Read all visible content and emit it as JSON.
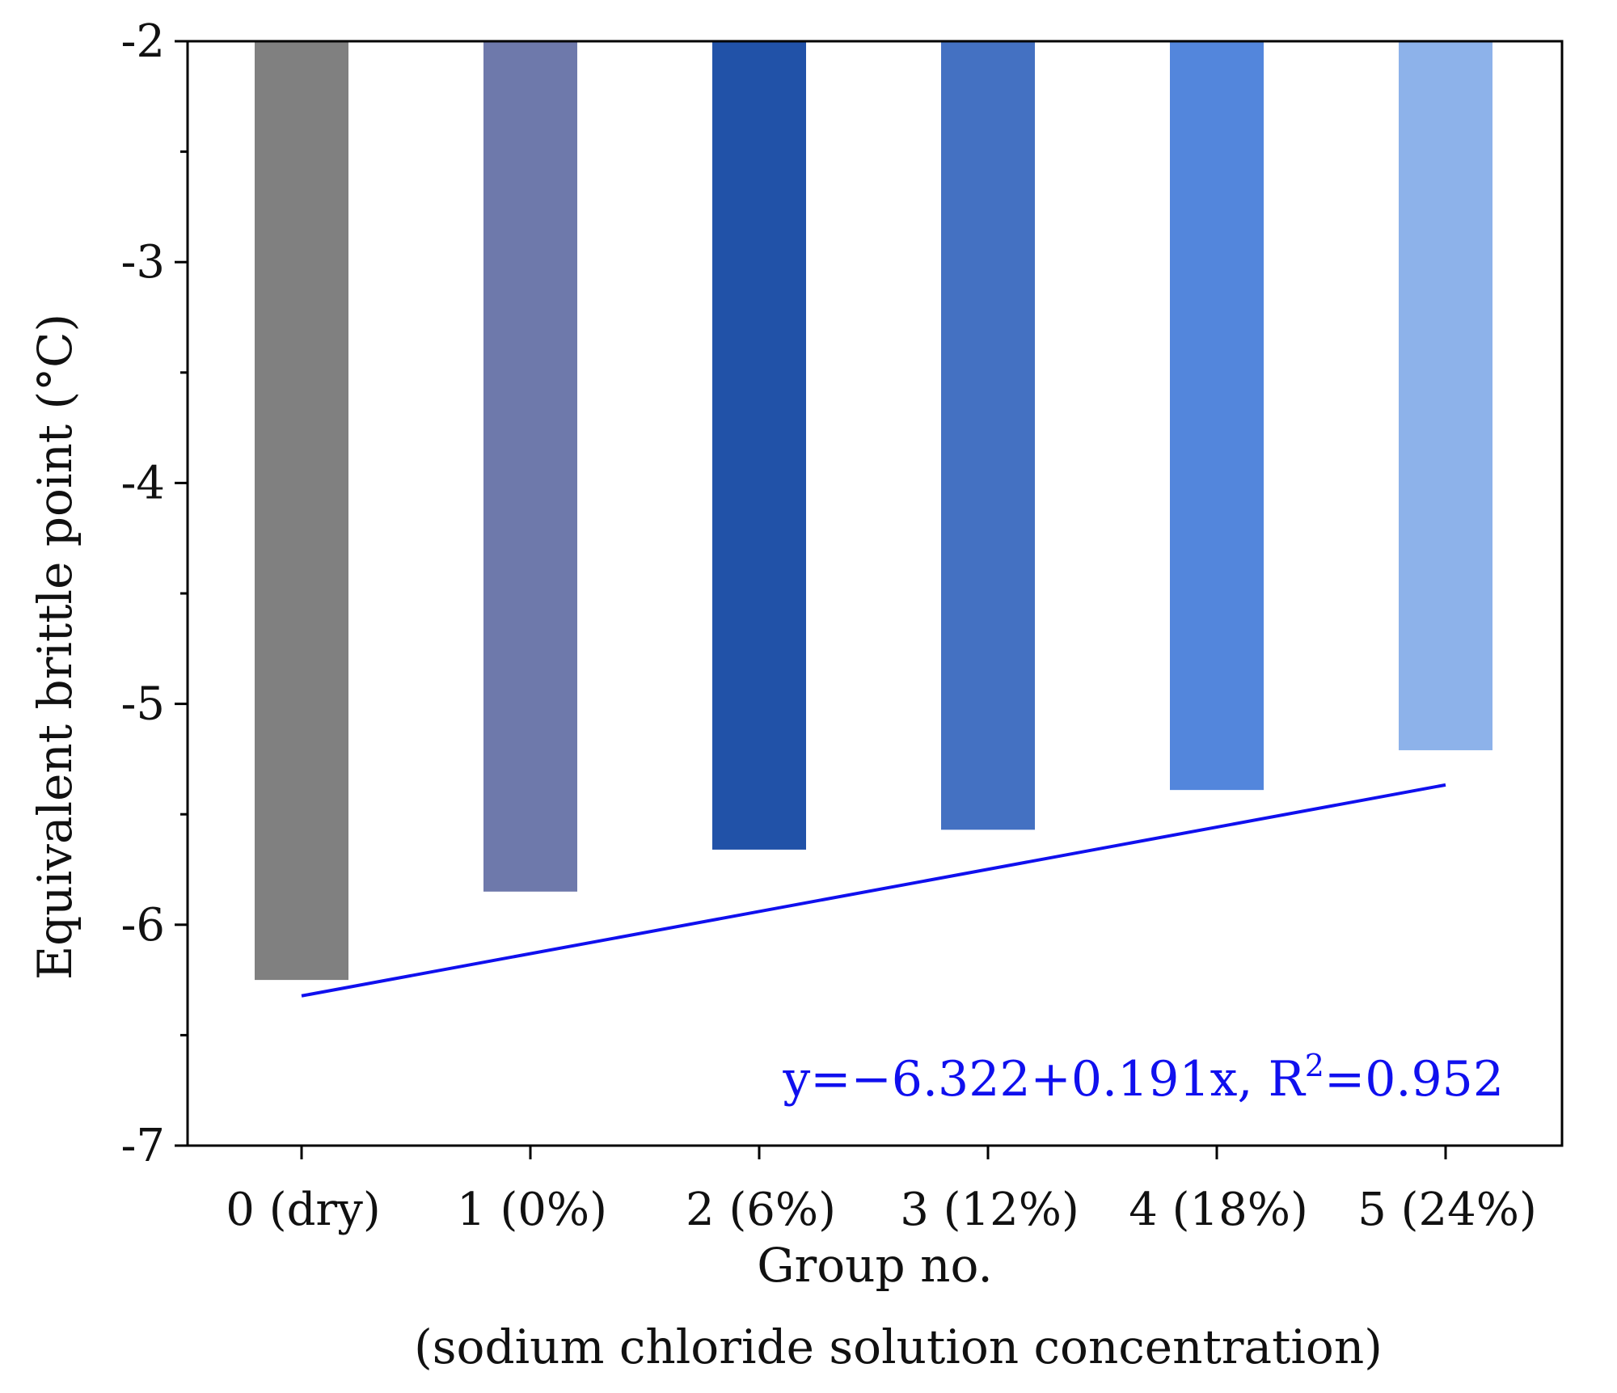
{
  "chart_data": {
    "type": "bar",
    "title": "",
    "xlabel": "Group no.",
    "xlabel_sub": "(sodium chloride solution concentration)",
    "ylabel": "Equivalent brittle point (°C)",
    "ylim": [
      -7,
      -2
    ],
    "yticks": [
      -2,
      -3,
      -4,
      -5,
      -6,
      -7
    ],
    "ytick_labels": [
      "-2",
      "-3",
      "-4",
      "-5",
      "-6",
      "-7"
    ],
    "x": [
      0,
      1,
      2,
      3,
      4,
      5
    ],
    "categories": [
      "0 (dry)",
      "1 (0%)",
      "2 (6%)",
      "3 (12%)",
      "4 (18%)",
      "5 (24%)"
    ],
    "values": [
      -6.25,
      -5.85,
      -5.66,
      -5.57,
      -5.39,
      -5.21
    ],
    "bar_colors": [
      "#808080",
      "#6e79ab",
      "#2152a8",
      "#4471c2",
      "#5386dc",
      "#8db2ea"
    ],
    "fit": {
      "intercept": -6.322,
      "slope": 0.191,
      "x_range": [
        0,
        5
      ],
      "color": "#1010ee",
      "equation_prefix": "y=−6.322+0.191x, R",
      "equation_sup": "2",
      "equation_suffix": "=0.952"
    },
    "grid": false,
    "legend": "none"
  }
}
